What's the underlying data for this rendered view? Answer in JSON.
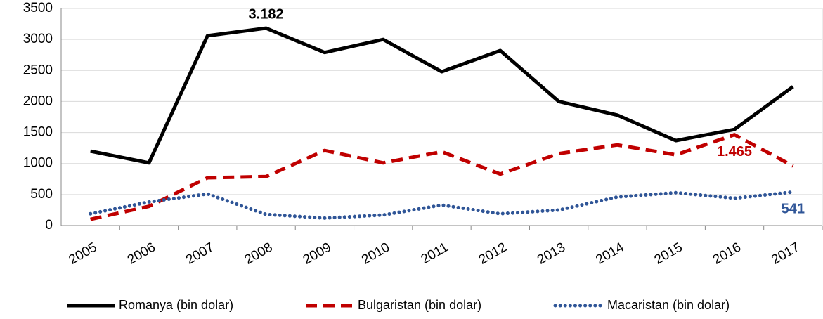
{
  "chart_data": {
    "type": "line",
    "categories": [
      "2005",
      "2006",
      "2007",
      "2008",
      "2009",
      "2010",
      "2011",
      "2012",
      "2013",
      "2014",
      "2015",
      "2016",
      "2017"
    ],
    "series": [
      {
        "name": "Romanya (bin dolar)",
        "color": "#000000",
        "line_style": "solid",
        "values": [
          1200,
          1010,
          3060,
          3182,
          2790,
          3000,
          2480,
          2820,
          2000,
          1780,
          1370,
          1550,
          2240
        ],
        "value_labels": [
          null,
          null,
          null,
          "3.182",
          null,
          null,
          null,
          null,
          null,
          null,
          null,
          null,
          null
        ]
      },
      {
        "name": "Bulgaristan (bin dolar)",
        "color": "#c00000",
        "line_style": "dashed",
        "values": [
          100,
          310,
          770,
          790,
          1210,
          1010,
          1190,
          830,
          1160,
          1300,
          1140,
          1465,
          960
        ],
        "value_labels": [
          null,
          null,
          null,
          null,
          null,
          null,
          null,
          null,
          null,
          null,
          null,
          "1.465",
          null
        ]
      },
      {
        "name": "Macaristan (bin dolar)",
        "color": "#2f5597",
        "line_style": "dotted",
        "values": [
          190,
          380,
          510,
          180,
          120,
          170,
          330,
          190,
          250,
          460,
          530,
          440,
          541
        ],
        "value_labels": [
          null,
          null,
          null,
          null,
          null,
          null,
          null,
          null,
          null,
          null,
          null,
          null,
          "541"
        ]
      }
    ],
    "ylim": [
      0,
      3500
    ],
    "yticks": [
      0,
      500,
      1000,
      1500,
      2000,
      2500,
      3000,
      3500
    ],
    "grid": true,
    "legend": "bottom"
  }
}
